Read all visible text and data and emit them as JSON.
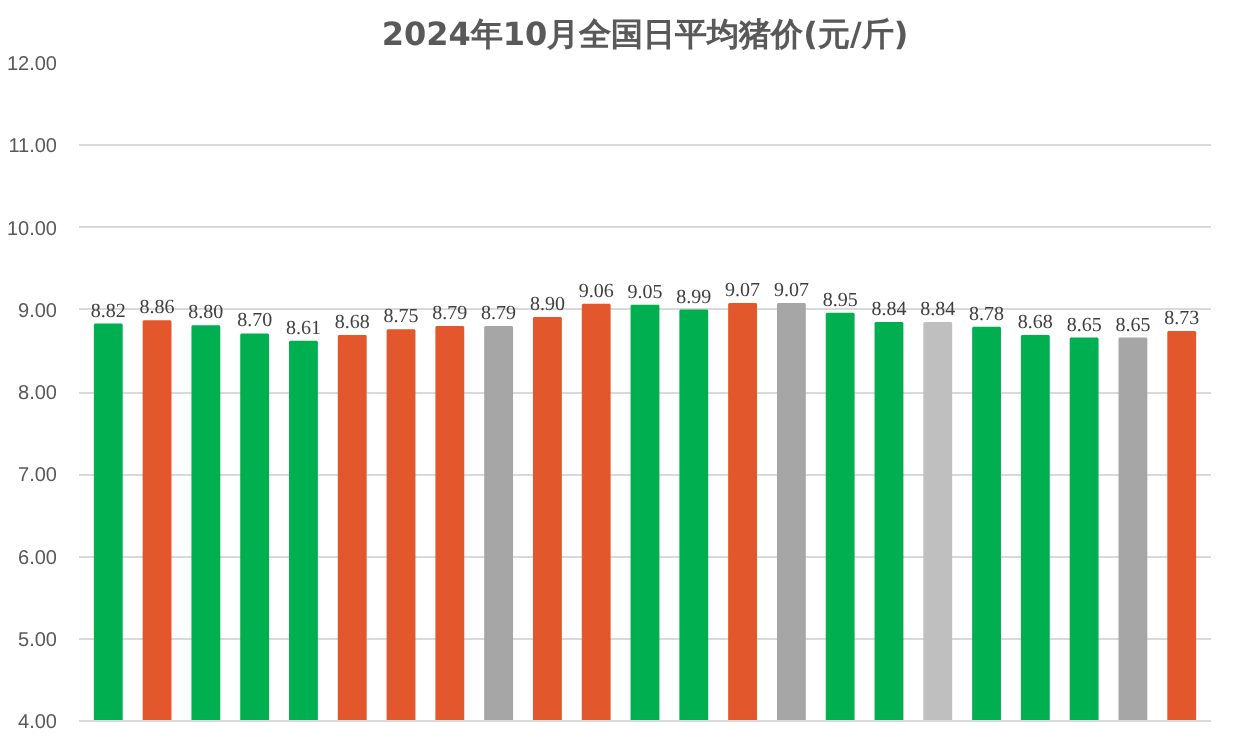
{
  "chart_data": {
    "type": "bar",
    "title": "2024年10月全国日平均猪价(元/斤)",
    "categories": [
      null,
      null,
      null,
      null,
      null,
      null,
      null,
      null,
      null,
      null,
      null,
      null,
      null,
      null,
      null,
      null,
      null,
      null,
      null,
      null,
      null,
      null,
      null
    ],
    "values": [
      8.82,
      8.86,
      8.8,
      8.7,
      8.61,
      8.68,
      8.75,
      8.79,
      8.79,
      8.9,
      9.06,
      9.05,
      8.99,
      9.07,
      9.07,
      8.95,
      8.84,
      8.84,
      8.78,
      8.68,
      8.65,
      8.65,
      8.73
    ],
    "value_labels": [
      "8.82",
      "8.86",
      "8.80",
      "8.70",
      "8.61",
      "8.68",
      "8.75",
      "8.79",
      "8.79",
      "8.90",
      "9.06",
      "9.05",
      "8.99",
      "9.07",
      "9.07",
      "8.95",
      "8.84",
      "8.84",
      "8.78",
      "8.68",
      "8.65",
      "8.65",
      "8.73"
    ],
    "colors": [
      "#00b050",
      "#e2572b",
      "#00b050",
      "#00b050",
      "#00b050",
      "#e2572b",
      "#e2572b",
      "#e2572b",
      "#a6a6a6",
      "#e2572b",
      "#e2572b",
      "#00b050",
      "#00b050",
      "#e2572b",
      "#a6a6a6",
      "#00b050",
      "#00b050",
      "#bfbfbf",
      "#00b050",
      "#00b050",
      "#00b050",
      "#a6a6a6",
      "#e2572b"
    ],
    "ylim": [
      4,
      12
    ],
    "yticks": [
      {
        "value": 4,
        "label": "4.00"
      },
      {
        "value": 5,
        "label": "5.00"
      },
      {
        "value": 6,
        "label": "6.00"
      },
      {
        "value": 7,
        "label": "7.00"
      },
      {
        "value": 8,
        "label": "8.00"
      },
      {
        "value": 9,
        "label": "9.00"
      },
      {
        "value": 10,
        "label": "10.00"
      },
      {
        "value": 11,
        "label": "11.00"
      },
      {
        "value": 12,
        "label": "12.00"
      }
    ],
    "grid": "y",
    "tick_labels": "y"
  }
}
